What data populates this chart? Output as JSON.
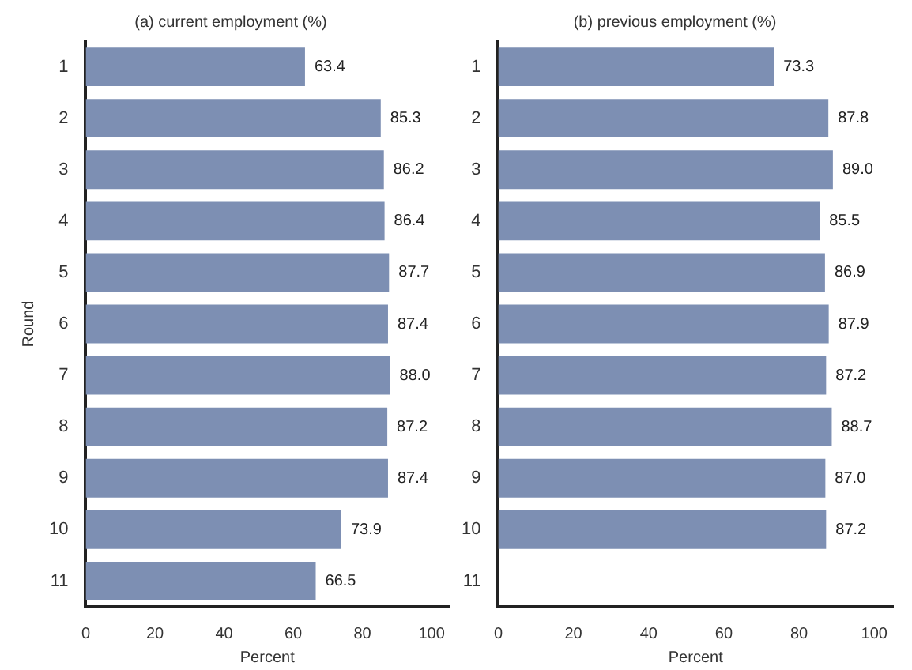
{
  "chart_data": [
    {
      "type": "bar",
      "orientation": "horizontal",
      "title": "(a) current employment (%)",
      "xlabel": "Percent",
      "ylabel": "Round",
      "categories": [
        "1",
        "2",
        "3",
        "4",
        "5",
        "6",
        "7",
        "8",
        "9",
        "10",
        "11"
      ],
      "series": [
        {
          "color": "#7d8fb3",
          "values": [
            63.4,
            85.3,
            86.2,
            86.4,
            87.7,
            87.4,
            88.0,
            87.2,
            87.4,
            73.9,
            66.5
          ],
          "value_labels": [
            "63.4",
            "85.3",
            "86.2",
            "86.4",
            "87.7",
            "87.4",
            "88.0",
            "87.2",
            "87.4",
            "73.9",
            "66.5"
          ]
        }
      ],
      "xlim": [
        0,
        105
      ],
      "xticks": [
        0,
        20,
        40,
        60,
        80,
        100
      ],
      "grid": false,
      "legend": false
    },
    {
      "type": "bar",
      "orientation": "horizontal",
      "title": "(b) previous employment (%)",
      "xlabel": "Percent",
      "categories": [
        "1",
        "2",
        "3",
        "4",
        "5",
        "6",
        "7",
        "8",
        "9",
        "10",
        "11"
      ],
      "series": [
        {
          "color": "#7d8fb3",
          "values": [
            73.3,
            87.8,
            89.0,
            85.5,
            86.9,
            87.9,
            87.2,
            88.7,
            87.0,
            87.2,
            null
          ],
          "value_labels": [
            "73.3",
            "87.8",
            "89.0",
            "85.5",
            "86.9",
            "87.9",
            "87.2",
            "88.7",
            "87.0",
            "87.2",
            null
          ]
        }
      ],
      "xlim": [
        0,
        105
      ],
      "xticks": [
        0,
        20,
        40,
        60,
        80,
        100
      ],
      "grid": false,
      "legend": false
    }
  ]
}
